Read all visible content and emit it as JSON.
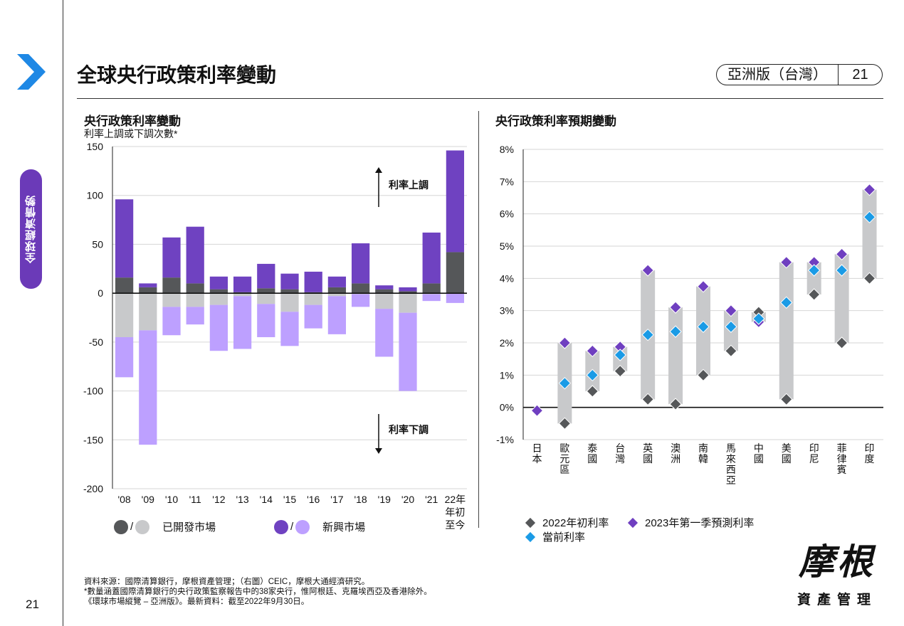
{
  "header": {
    "title": "全球央行政策利率變動",
    "region": "亞洲版（台灣）",
    "page": "21"
  },
  "sidebar": {
    "section_tab": "全球經濟情勢"
  },
  "colors": {
    "accent_blue": "#1e88e5",
    "developed_dark": "#555759",
    "developed_light": "#c8c9cb",
    "emerging_dark": "#6f42c1",
    "emerging_light": "#bda0ff",
    "range_bar": "#c8c9cb",
    "start_rate": "#555759",
    "forecast_rate": "#6f3fc0",
    "current_rate": "#1a9be6",
    "tab_purple": "#6b3ab8"
  },
  "chart_data": [
    {
      "type": "bar",
      "title": "央行政策利率變動",
      "subtitle": "利率上調或下調次數*",
      "categories": [
        "'08",
        "'09",
        "'10",
        "'11",
        "'12",
        "'13",
        "'14",
        "'15",
        "'16",
        "'17",
        "'18",
        "'19",
        "'20",
        "'21",
        "22年 年初 至今"
      ],
      "ylim": [
        -200,
        150
      ],
      "yticks": [
        150,
        100,
        50,
        0,
        -50,
        -100,
        -150,
        -200
      ],
      "stacked": true,
      "series": [
        {
          "name": "已開發市場 上調",
          "values": [
            16,
            6,
            16,
            10,
            4,
            1,
            5,
            4,
            1,
            6,
            10,
            4,
            2,
            10,
            42
          ]
        },
        {
          "name": "新興市場 上調",
          "values": [
            80,
            4,
            41,
            58,
            13,
            16,
            25,
            16,
            21,
            11,
            41,
            4,
            4,
            52,
            104
          ]
        },
        {
          "name": "已開發市場 下調",
          "values": [
            -45,
            -38,
            -14,
            -14,
            -12,
            -3,
            -11,
            -19,
            -12,
            -3,
            -1,
            -16,
            -20,
            -1,
            0
          ]
        },
        {
          "name": "新興市場 下調",
          "values": [
            -41,
            -117,
            -29,
            -18,
            -47,
            -54,
            -34,
            -35,
            -24,
            -39,
            -13,
            -49,
            -80,
            -7,
            -10
          ]
        }
      ],
      "annotations": {
        "up": "利率上調",
        "down": "利率下調"
      },
      "legend": {
        "developed": "已開發市場",
        "emerging": "新興市場",
        "slash": "/"
      },
      "grid": true
    },
    {
      "type": "range",
      "title": "央行政策利率預期變動",
      "categories": [
        "日本",
        "歐元區",
        "泰國",
        "台灣",
        "英國",
        "澳洲",
        "南韓",
        "馬來西亞",
        "中國",
        "美國",
        "印尼",
        "菲律賓",
        "印度"
      ],
      "ylim": [
        -1,
        8
      ],
      "yticks": [
        "8%",
        "7%",
        "6%",
        "5%",
        "4%",
        "3%",
        "2%",
        "1%",
        "0%",
        "-1%"
      ],
      "series": [
        {
          "name": "2022年初利率",
          "values": [
            -0.1,
            -0.5,
            0.5,
            1.125,
            0.25,
            0.1,
            1.0,
            1.75,
            2.95,
            0.25,
            3.5,
            2.0,
            4.0
          ]
        },
        {
          "name": "當前利率",
          "values": [
            -0.1,
            0.75,
            1.0,
            1.625,
            2.25,
            2.35,
            2.5,
            2.5,
            2.75,
            3.25,
            4.25,
            4.25,
            5.9
          ]
        },
        {
          "name": "2023年第一季預測利率",
          "values": [
            -0.1,
            2.0,
            1.75,
            1.875,
            4.25,
            3.1,
            3.75,
            3.0,
            2.65,
            4.5,
            4.5,
            4.75,
            6.75
          ]
        }
      ],
      "grid": true
    }
  ],
  "footnotes": [
    "資料來源：國際清算銀行，摩根資產管理；（右圖）CEIC，摩根大通經濟研究。",
    "*數量涵蓋國際清算銀行的央行政策監察報告中的38家央行，惟阿根廷、克羅埃西亞及香港除外。",
    "《環球市場縱覽 – 亞洲版》。最新資料：截至2022年9月30日。"
  ],
  "logo": {
    "main": "摩根",
    "sub": "資產管理"
  }
}
